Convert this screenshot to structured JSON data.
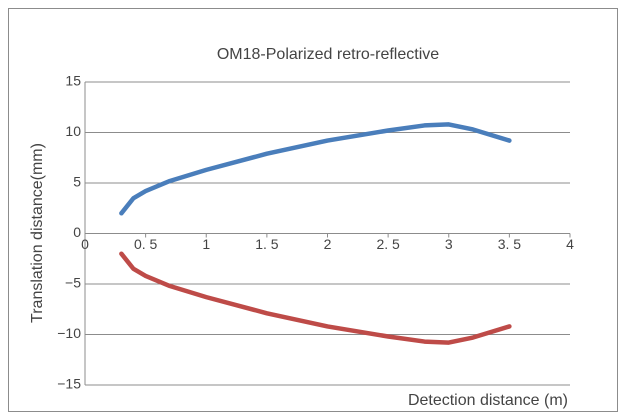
{
  "chart_data": {
    "type": "line",
    "title": "OM18-Polarized retro-reflective",
    "x_label": "Detection distance (m)",
    "y_label": "Translation distance(mm)",
    "x": [
      0.3,
      0.4,
      0.5,
      0.7,
      1,
      1.5,
      2,
      2.5,
      2.8,
      3,
      3.2,
      3.5
    ],
    "series": [
      {
        "color": "#4a7ebb",
        "values": [
          2,
          3.5,
          4.2,
          5.2,
          6.3,
          7.9,
          9.2,
          10.2,
          10.7,
          10.8,
          10.3,
          9.2
        ]
      },
      {
        "color": "#be4b48",
        "values": [
          -2,
          -3.5,
          -4.2,
          -5.2,
          -6.3,
          -7.9,
          -9.2,
          -10.2,
          -10.7,
          -10.8,
          -10.3,
          -9.2
        ]
      }
    ],
    "xlim": [
      0,
      4
    ],
    "xticks": [
      0,
      {
        "value": 0.5,
        "label": "0. 5"
      },
      1,
      {
        "value": 1.5,
        "label": "1. 5"
      },
      2,
      {
        "value": 2.5,
        "label": "2. 5"
      },
      3,
      {
        "value": 3.5,
        "label": "3. 5"
      },
      4
    ],
    "ylim": [
      -15,
      15
    ],
    "yticks": [
      {
        "value": -15,
        "label": "−15"
      },
      {
        "value": -10,
        "label": "−10"
      },
      {
        "value": -5,
        "label": "−5"
      },
      0,
      5,
      10,
      15
    ],
    "grid": true
  }
}
